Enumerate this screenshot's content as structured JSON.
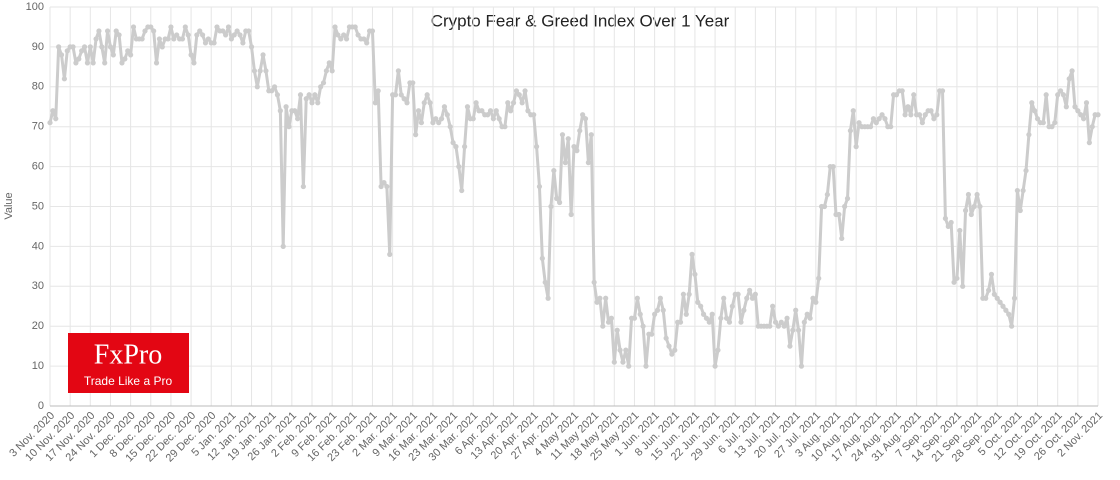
{
  "chart_data": {
    "type": "line",
    "title": "Crypto Fear & Greed Index Over 1 Year",
    "y_label": "Value",
    "categories": [
      "3 Nov. 2020",
      null,
      null,
      null,
      null,
      null,
      null,
      "10 Nov. 2020",
      null,
      null,
      null,
      null,
      null,
      null,
      "17 Nov. 2020",
      null,
      null,
      null,
      null,
      null,
      null,
      "24 Nov. 2020",
      null,
      null,
      null,
      null,
      null,
      null,
      "1 Dec. 2020",
      null,
      null,
      null,
      null,
      null,
      null,
      "8 Dec. 2020",
      null,
      null,
      null,
      null,
      null,
      null,
      "15 Dec. 2020",
      null,
      null,
      null,
      null,
      null,
      null,
      "22 Dec. 2020",
      null,
      null,
      null,
      null,
      null,
      null,
      "29 Dec. 2020",
      null,
      null,
      null,
      null,
      null,
      null,
      "5 Jan. 2021",
      null,
      null,
      null,
      null,
      null,
      null,
      "12 Jan. 2021",
      null,
      null,
      null,
      null,
      null,
      null,
      "19 Jan. 2021",
      null,
      null,
      null,
      null,
      null,
      null,
      "26 Jan. 2021",
      null,
      null,
      null,
      null,
      null,
      null,
      "2 Feb. 2021",
      null,
      null,
      null,
      null,
      null,
      null,
      "9 Feb. 2021",
      null,
      null,
      null,
      null,
      null,
      null,
      "16 Feb. 2021",
      null,
      null,
      null,
      null,
      null,
      null,
      "23 Feb. 2021",
      null,
      null,
      null,
      null,
      null,
      null,
      "2 Mar. 2021",
      null,
      null,
      null,
      null,
      null,
      null,
      "9 Mar. 2021",
      null,
      null,
      null,
      null,
      null,
      null,
      "16 Mar. 2021",
      null,
      null,
      null,
      null,
      null,
      null,
      "23 Mar. 2021",
      null,
      null,
      null,
      null,
      null,
      null,
      "30 Mar. 2021",
      null,
      null,
      null,
      null,
      null,
      null,
      "6 Apr. 2021",
      null,
      null,
      null,
      null,
      null,
      null,
      "13 Apr. 2021",
      null,
      null,
      null,
      null,
      null,
      null,
      "20 Apr. 2021",
      null,
      null,
      null,
      null,
      null,
      null,
      "27 Apr. 2021",
      null,
      null,
      null,
      null,
      null,
      null,
      "4 May 2021",
      null,
      null,
      null,
      null,
      null,
      null,
      "11 May 2021",
      null,
      null,
      null,
      null,
      null,
      null,
      "18 May 2021",
      null,
      null,
      null,
      null,
      null,
      null,
      "25 May 2021",
      null,
      null,
      null,
      null,
      null,
      null,
      "1 Jun. 2021",
      null,
      null,
      null,
      null,
      null,
      null,
      "8 Jun. 2021",
      null,
      null,
      null,
      null,
      null,
      null,
      "15 Jun. 2021",
      null,
      null,
      null,
      null,
      null,
      null,
      "22 Jun. 2021",
      null,
      null,
      null,
      null,
      null,
      null,
      "29 Jun. 2021",
      null,
      null,
      null,
      null,
      null,
      null,
      "6 Jul. 2021",
      null,
      null,
      null,
      null,
      null,
      null,
      "13 Jul. 2021",
      null,
      null,
      null,
      null,
      null,
      null,
      "20 Jul. 2021",
      null,
      null,
      null,
      null,
      null,
      null,
      "27 Jul. 2021",
      null,
      null,
      null,
      null,
      null,
      null,
      "3 Aug. 2021",
      null,
      null,
      null,
      null,
      null,
      null,
      "10 Aug. 2021",
      null,
      null,
      null,
      null,
      null,
      null,
      "17 Aug. 2021",
      null,
      null,
      null,
      null,
      null,
      null,
      "24 Aug. 2021",
      null,
      null,
      null,
      null,
      null,
      null,
      "31 Aug. 2021",
      null,
      null,
      null,
      null,
      null,
      null,
      "7 Sep. 2021",
      null,
      null,
      null,
      null,
      null,
      null,
      "14 Sep. 2021",
      null,
      null,
      null,
      null,
      null,
      null,
      "21 Sep. 2021",
      null,
      null,
      null,
      null,
      null,
      null,
      "28 Sep. 2021",
      null,
      null,
      null,
      null,
      null,
      null,
      "5 Oct. 2021",
      null,
      null,
      null,
      null,
      null,
      null,
      "12 Oct. 2021",
      null,
      null,
      null,
      null,
      null,
      null,
      "19 Oct. 2021",
      null,
      null,
      null,
      null,
      null,
      null,
      "26 Oct. 2021",
      null,
      null,
      null,
      null,
      null,
      null,
      "2 Nov. 2021"
    ],
    "values": [
      71,
      74,
      72,
      90,
      88,
      82,
      89,
      90,
      90,
      86,
      87,
      89,
      90,
      86,
      90,
      86,
      92,
      94,
      90,
      86,
      94,
      90,
      88,
      94,
      93,
      86,
      87,
      89,
      88,
      95,
      92,
      92,
      92,
      94,
      95,
      95,
      94,
      86,
      92,
      90,
      92,
      92,
      95,
      92,
      93,
      92,
      92,
      95,
      93,
      88,
      86,
      93,
      94,
      93,
      91,
      92,
      91,
      91,
      95,
      94,
      94,
      93,
      95,
      92,
      93,
      94,
      93,
      91,
      94,
      94,
      90,
      84,
      80,
      84,
      88,
      84,
      79,
      79,
      80,
      78,
      74,
      40,
      75,
      70,
      74,
      74,
      72,
      78,
      55,
      77,
      78,
      76,
      78,
      76,
      80,
      81,
      84,
      86,
      84,
      95,
      93,
      92,
      93,
      92,
      95,
      95,
      95,
      93,
      92,
      92,
      91,
      94,
      94,
      76,
      79,
      55,
      56,
      55,
      38,
      78,
      78,
      84,
      78,
      77,
      76,
      81,
      81,
      68,
      74,
      71,
      76,
      78,
      76,
      71,
      72,
      71,
      72,
      75,
      73,
      70,
      66,
      65,
      60,
      54,
      65,
      75,
      72,
      72,
      76,
      74,
      74,
      73,
      73,
      74,
      72,
      74,
      72,
      70,
      70,
      76,
      74,
      76,
      79,
      78,
      76,
      79,
      74,
      73,
      73,
      65,
      55,
      37,
      31,
      27,
      50,
      59,
      52,
      51,
      68,
      61,
      67,
      48,
      65,
      64,
      69,
      73,
      72,
      61,
      68,
      31,
      26,
      27,
      20,
      27,
      21,
      22,
      11,
      19,
      14,
      11,
      14,
      10,
      22,
      22,
      27,
      23,
      20,
      10,
      18,
      18,
      23,
      24,
      27,
      24,
      17,
      15,
      13,
      14,
      21,
      21,
      28,
      23,
      28,
      38,
      33,
      26,
      25,
      23,
      22,
      21,
      23,
      10,
      14,
      22,
      27,
      22,
      21,
      25,
      28,
      28,
      21,
      24,
      27,
      29,
      27,
      28,
      20,
      20,
      20,
      20,
      20,
      25,
      21,
      20,
      21,
      20,
      22,
      15,
      19,
      24,
      19,
      10,
      21,
      23,
      22,
      27,
      26,
      32,
      50,
      50,
      53,
      60,
      60,
      48,
      48,
      42,
      50,
      52,
      69,
      74,
      65,
      71,
      70,
      70,
      70,
      70,
      72,
      71,
      72,
      73,
      72,
      70,
      70,
      78,
      78,
      79,
      79,
      73,
      75,
      73,
      78,
      73,
      73,
      71,
      73,
      74,
      74,
      72,
      73,
      79,
      79,
      47,
      45,
      46,
      31,
      32,
      44,
      30,
      49,
      53,
      48,
      50,
      53,
      50,
      27,
      27,
      29,
      33,
      28,
      27,
      26,
      25,
      24,
      23,
      20,
      27,
      54,
      49,
      54,
      59,
      68,
      76,
      74,
      72,
      71,
      71,
      78,
      70,
      70,
      71,
      78,
      79,
      78,
      75,
      82,
      84,
      75,
      74,
      73,
      72,
      76,
      66,
      70,
      73,
      73
    ],
    "color": "#cccccc",
    "ylim": [
      0,
      100
    ],
    "yticks": [
      0,
      10,
      20,
      30,
      40,
      50,
      60,
      70,
      80,
      90,
      100
    ],
    "grid": true
  },
  "logo": {
    "brand": "FxPro",
    "tagline": "Trade Like a Pro"
  }
}
